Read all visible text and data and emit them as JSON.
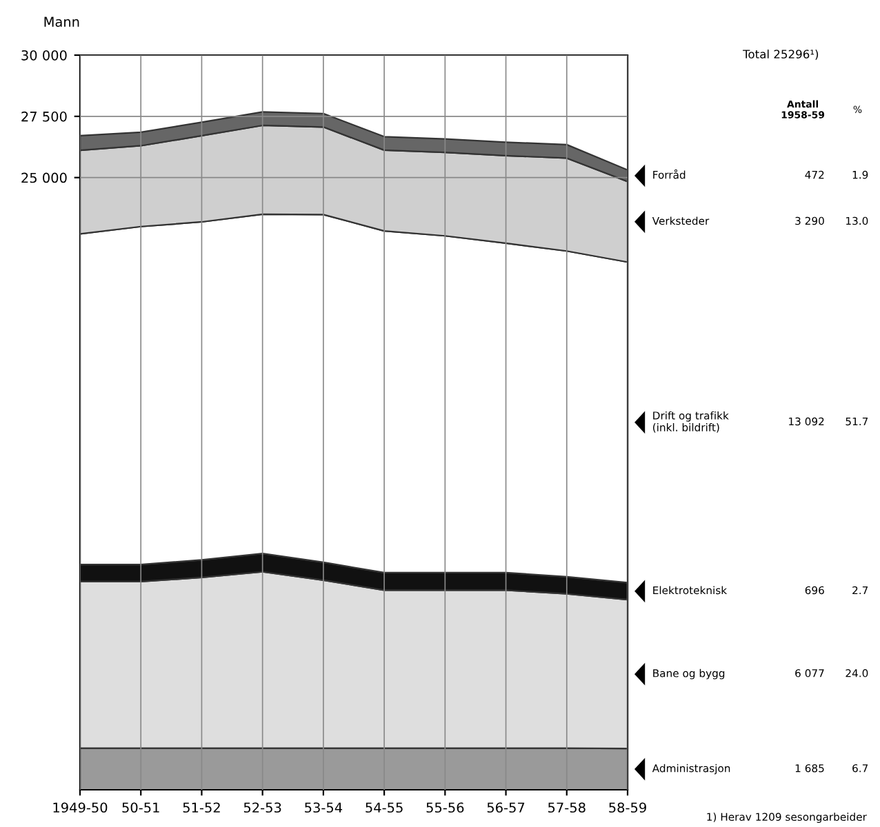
{
  "chart_data": {
    "type": "area",
    "stacked": true,
    "ylabel": "Mann",
    "categories": [
      "1949-50",
      "50-51",
      "51-52",
      "52-53",
      "53-54",
      "54-55",
      "55-56",
      "56-57",
      "57-58",
      "58-59"
    ],
    "ylim": [
      0,
      30000
    ],
    "yticks": [
      {
        "value": 25000,
        "label": "25 000"
      },
      {
        "value": 27500,
        "label": "27 500"
      },
      {
        "value": 30000,
        "label": "30 000"
      }
    ],
    "grid": true,
    "legend": "right",
    "series": [
      {
        "name": "Administrasjon",
        "color": "#9a9a9a",
        "values": [
          1700,
          1700,
          1700,
          1700,
          1700,
          1700,
          1700,
          1700,
          1700,
          1685
        ]
      },
      {
        "name": "Bane og bygg",
        "color": "#dedede",
        "values": [
          6800,
          6800,
          6970,
          7200,
          6860,
          6450,
          6450,
          6450,
          6300,
          6077
        ]
      },
      {
        "name": "Elektroteknisk",
        "color": "#111111",
        "values": [
          700,
          700,
          720,
          750,
          730,
          720,
          720,
          720,
          700,
          696
        ]
      },
      {
        "name": "Drift og trafikk\n(inkl. bildrift)",
        "color": "#ffffff",
        "values": [
          13500,
          13800,
          13800,
          13850,
          14200,
          13950,
          13750,
          13450,
          13300,
          13092
        ]
      },
      {
        "name": "Verksteder",
        "color": "#cfcfcf",
        "values": [
          3410,
          3300,
          3520,
          3630,
          3575,
          3300,
          3410,
          3575,
          3795,
          3290
        ]
      },
      {
        "name": "Forråd",
        "color": "#666666",
        "values": [
          600,
          550,
          550,
          550,
          550,
          550,
          550,
          550,
          550,
          472
        ]
      }
    ],
    "annotations": [
      "Total 25296¹)",
      "Antall\n1958-59",
      "%",
      "472",
      "1.9",
      "3 290",
      "13.0",
      "13 092",
      "51.7",
      "696",
      "2.7",
      "6 077",
      "24.0",
      "1 685",
      "6.7",
      "1) Herav 1209 sesongarbeider"
    ]
  }
}
